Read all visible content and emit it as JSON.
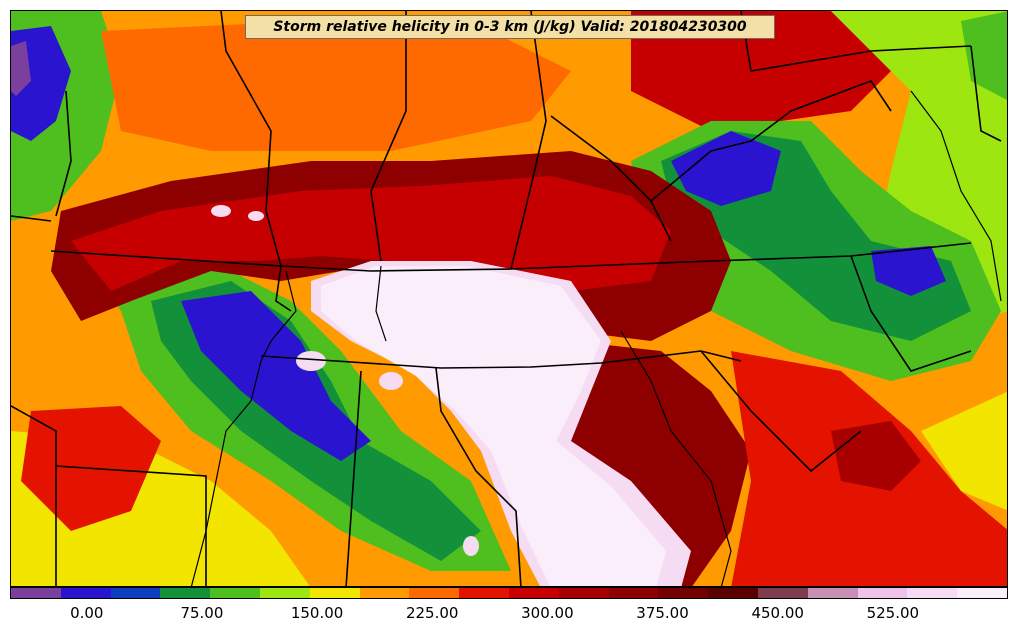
{
  "title": "Storm relative helicity in 0-3 km (J/kg) Valid: 201804230300",
  "colorbar": {
    "colors": [
      "#7b3f9e",
      "#2a14cf",
      "#0f3fbf",
      "#13913a",
      "#4fbf1f",
      "#9ee60f",
      "#f2e600",
      "#ff9a00",
      "#ff6a00",
      "#e31300",
      "#c60000",
      "#a80000",
      "#8e0000",
      "#730000",
      "#5a0000",
      "#7d3c4f",
      "#c88fb4",
      "#efc2ea",
      "#f5dcf3",
      "#fbeefb"
    ],
    "tick_labels": [
      "0.00",
      "75.00",
      "150.00",
      "225.00",
      "300.00",
      "375.00",
      "450.00",
      "525.00"
    ],
    "tick_values": [
      0,
      75,
      150,
      225,
      300,
      375,
      450,
      525
    ],
    "min": -50,
    "max": 600
  }
}
